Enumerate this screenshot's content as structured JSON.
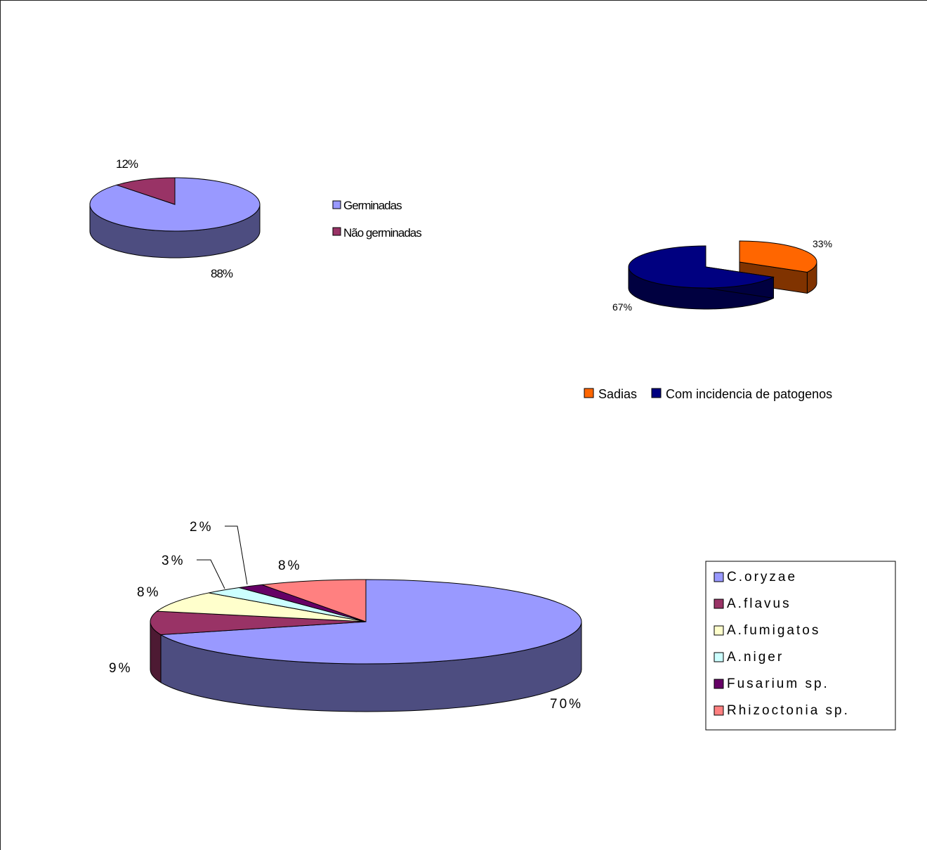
{
  "chart_data": [
    {
      "type": "pie",
      "style": "3d",
      "title": "",
      "slices": [
        {
          "label": "Germinadas",
          "value": 88,
          "display": "88%",
          "color": "#9999FF",
          "side": "#4D4D80"
        },
        {
          "label": "Não germinadas",
          "value": 12,
          "display": "12%",
          "color": "#993366",
          "side": "#4D1A33"
        }
      ],
      "legend": {
        "position": "right",
        "entries": [
          "Germinadas",
          "Não germinadas"
        ]
      }
    },
    {
      "type": "pie",
      "style": "3d-exploded",
      "title": "",
      "slices": [
        {
          "label": "Sadias",
          "value": 33,
          "display": "33%",
          "color": "#FF6600",
          "side": "#803300"
        },
        {
          "label": "Com incidencia de patogenos",
          "value": 67,
          "display": "67%",
          "color": "#000080",
          "side": "#000040"
        }
      ],
      "legend": {
        "position": "bottom",
        "entries": [
          "Sadias",
          "Com incidencia de patogenos"
        ]
      }
    },
    {
      "type": "pie",
      "style": "3d",
      "title": "",
      "slices": [
        {
          "label": "C.oryzae",
          "value": 70,
          "display": "70%",
          "color": "#9999FF",
          "side": "#4D4D80"
        },
        {
          "label": "A.flavus",
          "value": 9,
          "display": "9%",
          "color": "#993366",
          "side": "#4D1A33"
        },
        {
          "label": "A.fumigatos",
          "value": 8,
          "display": "8%",
          "color": "#FFFFCC",
          "side": "#808066"
        },
        {
          "label": "A.niger",
          "value": 3,
          "display": "3%",
          "color": "#CCFFFF",
          "side": "#668080"
        },
        {
          "label": "Fusarium sp.",
          "value": 2,
          "display": "2%",
          "color": "#660066",
          "side": "#330033"
        },
        {
          "label": "Rhizoctonia sp.",
          "value": 8,
          "display": "8%",
          "color": "#FF8080",
          "side": "#804040"
        }
      ],
      "legend": {
        "position": "right",
        "boxed": true,
        "entries": [
          "C.oryzae",
          "A.flavus",
          "A.fumigatos",
          "A.niger",
          "Fusarium sp.",
          "Rhizoctonia sp."
        ]
      }
    }
  ]
}
